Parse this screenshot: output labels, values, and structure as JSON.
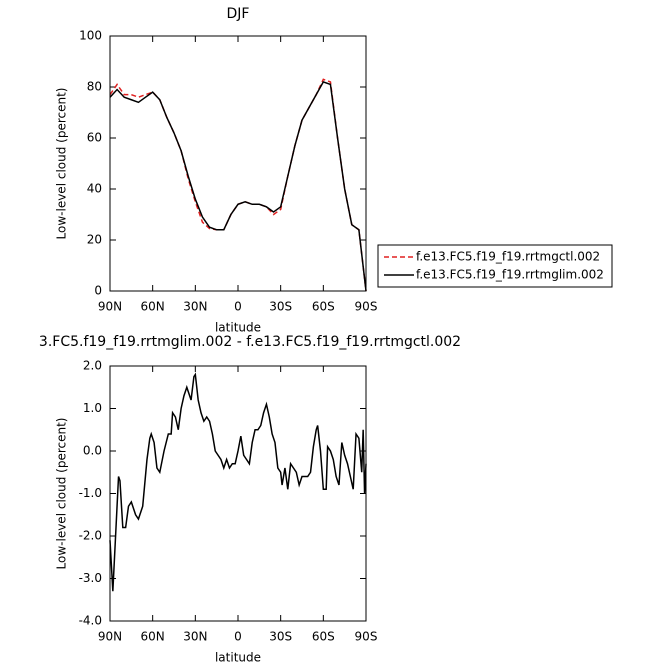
{
  "chart_data": [
    {
      "type": "line",
      "title": "DJF",
      "xlabel": "latitude",
      "ylabel": "Low-level cloud (percent)",
      "xlim": [
        90,
        -90
      ],
      "xticks": [
        {
          "value": 90,
          "label": "90N"
        },
        {
          "value": 60,
          "label": "60N"
        },
        {
          "value": 30,
          "label": "30N"
        },
        0,
        {
          "value": -30,
          "label": "30S"
        },
        {
          "value": -60,
          "label": "60S"
        },
        {
          "value": -90,
          "label": "90S"
        }
      ],
      "ylim": [
        0,
        100
      ],
      "yticks": [
        0,
        20,
        40,
        60,
        80,
        100
      ],
      "x": [
        90,
        85,
        80,
        75,
        70,
        65,
        60,
        55,
        50,
        45,
        40,
        35,
        30,
        25,
        20,
        15,
        10,
        5,
        0,
        -5,
        -10,
        -15,
        -20,
        -25,
        -30,
        -35,
        -40,
        -45,
        -50,
        -55,
        -60,
        -65,
        -70,
        -75,
        -80,
        -85,
        -90
      ],
      "series": [
        {
          "name": "f.e13.FC5.f19_f19.rrtmgctl.002",
          "color": "#e02020",
          "line_style": "dashed",
          "values": [
            77,
            81,
            77,
            77,
            76,
            77,
            78,
            75,
            68,
            62,
            55,
            44,
            35,
            27,
            24.5,
            24,
            24,
            30,
            34,
            35,
            34,
            34,
            33,
            30,
            32,
            45,
            57,
            67,
            72,
            77,
            83,
            82,
            60,
            40,
            26,
            24,
            0
          ]
        },
        {
          "name": "f.e13.FC5.f19_f19.rrtmglim.002",
          "color": "#000000",
          "line_style": "solid",
          "values": [
            76,
            79,
            76,
            75,
            74,
            76,
            78,
            75,
            68,
            62,
            55,
            45,
            36,
            29,
            25,
            24,
            24,
            30,
            34,
            35,
            34,
            34,
            33,
            31,
            33,
            45,
            57,
            67,
            72,
            77,
            82,
            81,
            60,
            40,
            26,
            24,
            0
          ]
        }
      ]
    },
    {
      "type": "line",
      "title": "3.FC5.f19_f19.rrtmglim.002 - f.e13.FC5.f19_f19.rrtmgctl.002",
      "xlabel": "latitude",
      "ylabel": "Low-level cloud (percent)",
      "xlim": [
        90,
        -90
      ],
      "xticks": [
        {
          "value": 90,
          "label": "90N"
        },
        {
          "value": 60,
          "label": "60N"
        },
        {
          "value": 30,
          "label": "30N"
        },
        0,
        {
          "value": -30,
          "label": "30S"
        },
        {
          "value": -60,
          "label": "60S"
        },
        {
          "value": -90,
          "label": "90S"
        }
      ],
      "ylim": [
        -4,
        2
      ],
      "yticks": [
        {
          "value": -4,
          "label": "-4.0"
        },
        {
          "value": -3,
          "label": "-3.0"
        },
        {
          "value": -2,
          "label": "-2.0"
        },
        {
          "value": -1,
          "label": "-1.0"
        },
        {
          "value": 0,
          "label": "0.0"
        },
        {
          "value": 1,
          "label": "1.0"
        },
        {
          "value": 2,
          "label": "2.0"
        }
      ],
      "color": "#000000",
      "line_style": "solid",
      "x": [
        90,
        88,
        84,
        83,
        81,
        79,
        77,
        75,
        72,
        70,
        67,
        64,
        62,
        61,
        59,
        57,
        55,
        52,
        49,
        47,
        46,
        44,
        42,
        40,
        38,
        36,
        33,
        31,
        30,
        28,
        26,
        24,
        22,
        20,
        18,
        16,
        14,
        12,
        10,
        8,
        6,
        4,
        2,
        0,
        -2,
        -4,
        -6,
        -8,
        -10,
        -12,
        -14,
        -16,
        -18,
        -20,
        -22,
        -24,
        -26,
        -28,
        -30,
        -31,
        -33,
        -35,
        -37,
        -39,
        -41,
        -43,
        -45,
        -47,
        -49,
        -51,
        -53,
        -55,
        -56,
        -58,
        -60,
        -62,
        -63,
        -65,
        -67,
        -69,
        -71,
        -73,
        -75,
        -77,
        -79,
        -81,
        -83,
        -85,
        -87,
        -88,
        -89,
        -90
      ],
      "values": [
        -2.1,
        -3.3,
        -0.6,
        -0.7,
        -1.8,
        -1.8,
        -1.3,
        -1.2,
        -1.5,
        -1.6,
        -1.3,
        -0.2,
        0.3,
        0.4,
        0.2,
        -0.4,
        -0.5,
        0.0,
        0.4,
        0.4,
        0.9,
        0.8,
        0.5,
        1.0,
        1.3,
        1.5,
        1.2,
        1.75,
        1.8,
        1.2,
        0.9,
        0.7,
        0.8,
        0.7,
        0.4,
        0.0,
        -0.1,
        -0.2,
        -0.4,
        -0.2,
        -0.4,
        -0.3,
        -0.3,
        0.0,
        0.35,
        -0.1,
        -0.2,
        -0.3,
        0.2,
        0.5,
        0.5,
        0.6,
        0.9,
        1.1,
        0.8,
        0.4,
        0.2,
        -0.4,
        -0.5,
        -0.8,
        -0.4,
        -0.9,
        -0.3,
        -0.4,
        -0.5,
        -0.8,
        -0.6,
        -0.6,
        -0.6,
        -0.5,
        0.1,
        0.5,
        0.6,
        0.0,
        -0.9,
        -0.9,
        0.1,
        0.0,
        -0.2,
        -0.6,
        -0.8,
        0.2,
        -0.1,
        -0.3,
        -0.6,
        -0.9,
        0.4,
        0.3,
        -0.5,
        0.5,
        -1.0,
        -0.3
      ]
    }
  ]
}
